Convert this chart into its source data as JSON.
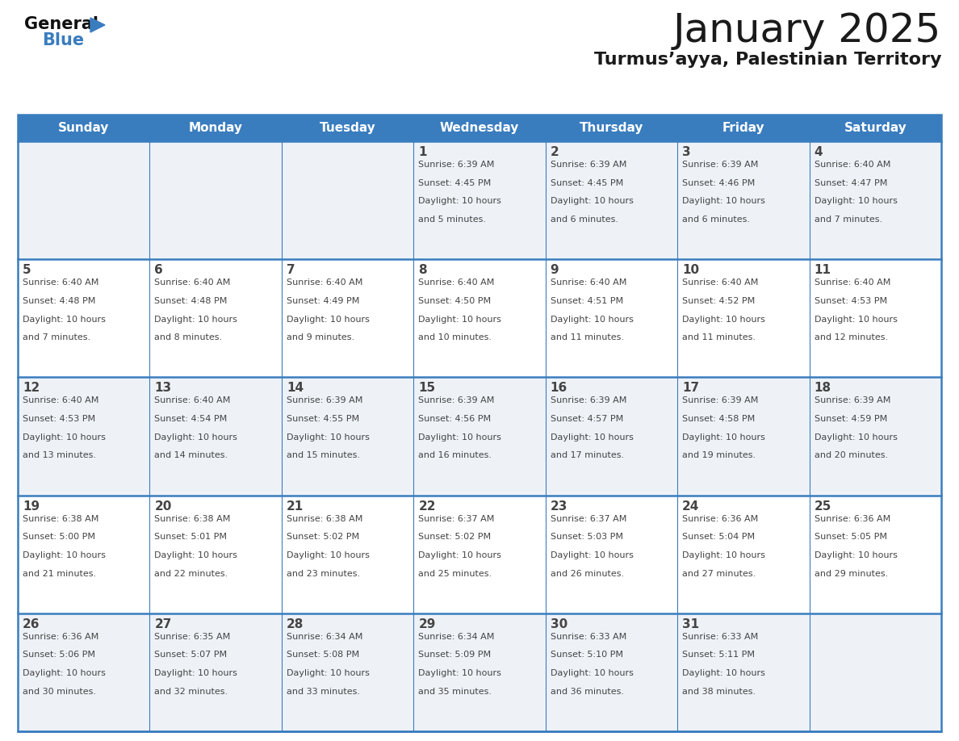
{
  "title": "January 2025",
  "subtitle": "Turmus’ayya, Palestinian Territory",
  "days_of_week": [
    "Sunday",
    "Monday",
    "Tuesday",
    "Wednesday",
    "Thursday",
    "Friday",
    "Saturday"
  ],
  "header_bg": "#3a7dbf",
  "header_text": "#ffffff",
  "cell_bg_odd": "#eef2f7",
  "cell_bg_even": "#ffffff",
  "border_color": "#3a7dbf",
  "text_color": "#444444",
  "title_color": "#1a1a1a",
  "title_fontsize": 36,
  "subtitle_fontsize": 16,
  "dow_fontsize": 11,
  "day_num_fontsize": 11,
  "cell_text_fontsize": 8,
  "weeks": [
    [
      {
        "day": null,
        "sunrise": null,
        "sunset": null,
        "daylight": null
      },
      {
        "day": null,
        "sunrise": null,
        "sunset": null,
        "daylight": null
      },
      {
        "day": null,
        "sunrise": null,
        "sunset": null,
        "daylight": null
      },
      {
        "day": 1,
        "sunrise": "6:39 AM",
        "sunset": "4:45 PM",
        "daylight": "10 hours\nand 5 minutes."
      },
      {
        "day": 2,
        "sunrise": "6:39 AM",
        "sunset": "4:45 PM",
        "daylight": "10 hours\nand 6 minutes."
      },
      {
        "day": 3,
        "sunrise": "6:39 AM",
        "sunset": "4:46 PM",
        "daylight": "10 hours\nand 6 minutes."
      },
      {
        "day": 4,
        "sunrise": "6:40 AM",
        "sunset": "4:47 PM",
        "daylight": "10 hours\nand 7 minutes."
      }
    ],
    [
      {
        "day": 5,
        "sunrise": "6:40 AM",
        "sunset": "4:48 PM",
        "daylight": "10 hours\nand 7 minutes."
      },
      {
        "day": 6,
        "sunrise": "6:40 AM",
        "sunset": "4:48 PM",
        "daylight": "10 hours\nand 8 minutes."
      },
      {
        "day": 7,
        "sunrise": "6:40 AM",
        "sunset": "4:49 PM",
        "daylight": "10 hours\nand 9 minutes."
      },
      {
        "day": 8,
        "sunrise": "6:40 AM",
        "sunset": "4:50 PM",
        "daylight": "10 hours\nand 10 minutes."
      },
      {
        "day": 9,
        "sunrise": "6:40 AM",
        "sunset": "4:51 PM",
        "daylight": "10 hours\nand 11 minutes."
      },
      {
        "day": 10,
        "sunrise": "6:40 AM",
        "sunset": "4:52 PM",
        "daylight": "10 hours\nand 11 minutes."
      },
      {
        "day": 11,
        "sunrise": "6:40 AM",
        "sunset": "4:53 PM",
        "daylight": "10 hours\nand 12 minutes."
      }
    ],
    [
      {
        "day": 12,
        "sunrise": "6:40 AM",
        "sunset": "4:53 PM",
        "daylight": "10 hours\nand 13 minutes."
      },
      {
        "day": 13,
        "sunrise": "6:40 AM",
        "sunset": "4:54 PM",
        "daylight": "10 hours\nand 14 minutes."
      },
      {
        "day": 14,
        "sunrise": "6:39 AM",
        "sunset": "4:55 PM",
        "daylight": "10 hours\nand 15 minutes."
      },
      {
        "day": 15,
        "sunrise": "6:39 AM",
        "sunset": "4:56 PM",
        "daylight": "10 hours\nand 16 minutes."
      },
      {
        "day": 16,
        "sunrise": "6:39 AM",
        "sunset": "4:57 PM",
        "daylight": "10 hours\nand 17 minutes."
      },
      {
        "day": 17,
        "sunrise": "6:39 AM",
        "sunset": "4:58 PM",
        "daylight": "10 hours\nand 19 minutes."
      },
      {
        "day": 18,
        "sunrise": "6:39 AM",
        "sunset": "4:59 PM",
        "daylight": "10 hours\nand 20 minutes."
      }
    ],
    [
      {
        "day": 19,
        "sunrise": "6:38 AM",
        "sunset": "5:00 PM",
        "daylight": "10 hours\nand 21 minutes."
      },
      {
        "day": 20,
        "sunrise": "6:38 AM",
        "sunset": "5:01 PM",
        "daylight": "10 hours\nand 22 minutes."
      },
      {
        "day": 21,
        "sunrise": "6:38 AM",
        "sunset": "5:02 PM",
        "daylight": "10 hours\nand 23 minutes."
      },
      {
        "day": 22,
        "sunrise": "6:37 AM",
        "sunset": "5:02 PM",
        "daylight": "10 hours\nand 25 minutes."
      },
      {
        "day": 23,
        "sunrise": "6:37 AM",
        "sunset": "5:03 PM",
        "daylight": "10 hours\nand 26 minutes."
      },
      {
        "day": 24,
        "sunrise": "6:36 AM",
        "sunset": "5:04 PM",
        "daylight": "10 hours\nand 27 minutes."
      },
      {
        "day": 25,
        "sunrise": "6:36 AM",
        "sunset": "5:05 PM",
        "daylight": "10 hours\nand 29 minutes."
      }
    ],
    [
      {
        "day": 26,
        "sunrise": "6:36 AM",
        "sunset": "5:06 PM",
        "daylight": "10 hours\nand 30 minutes."
      },
      {
        "day": 27,
        "sunrise": "6:35 AM",
        "sunset": "5:07 PM",
        "daylight": "10 hours\nand 32 minutes."
      },
      {
        "day": 28,
        "sunrise": "6:34 AM",
        "sunset": "5:08 PM",
        "daylight": "10 hours\nand 33 minutes."
      },
      {
        "day": 29,
        "sunrise": "6:34 AM",
        "sunset": "5:09 PM",
        "daylight": "10 hours\nand 35 minutes."
      },
      {
        "day": 30,
        "sunrise": "6:33 AM",
        "sunset": "5:10 PM",
        "daylight": "10 hours\nand 36 minutes."
      },
      {
        "day": 31,
        "sunrise": "6:33 AM",
        "sunset": "5:11 PM",
        "daylight": "10 hours\nand 38 minutes."
      },
      {
        "day": null,
        "sunrise": null,
        "sunset": null,
        "daylight": null
      }
    ]
  ]
}
